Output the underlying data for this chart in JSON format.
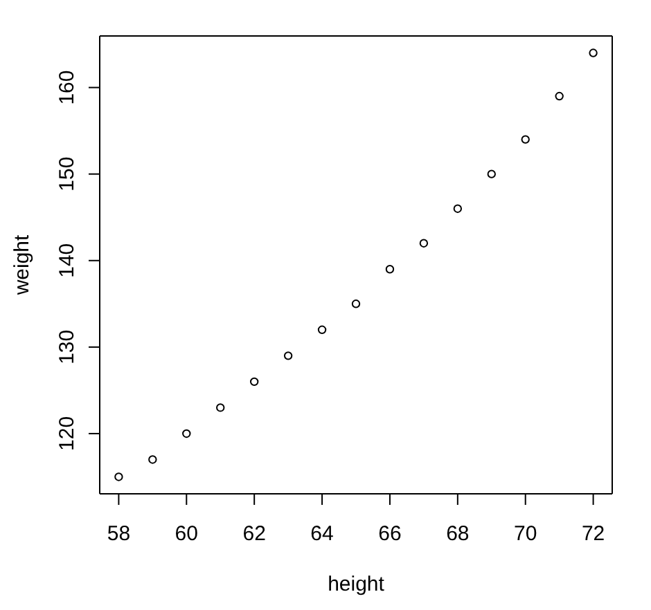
{
  "chart_data": {
    "type": "scatter",
    "xlabel": "height",
    "ylabel": "weight",
    "x": [
      58,
      59,
      60,
      61,
      62,
      63,
      64,
      65,
      66,
      67,
      68,
      69,
      70,
      71,
      72
    ],
    "values": [
      115,
      117,
      120,
      123,
      126,
      129,
      132,
      135,
      139,
      142,
      146,
      150,
      154,
      159,
      164
    ],
    "color": "#000000",
    "marker": "circle",
    "xlim": [
      57.44,
      72.56
    ],
    "ylim": [
      113.04,
      165.96
    ],
    "xticks": [
      58,
      60,
      62,
      64,
      66,
      68,
      70,
      72
    ],
    "yticks": [
      120,
      130,
      140,
      150,
      160
    ]
  }
}
